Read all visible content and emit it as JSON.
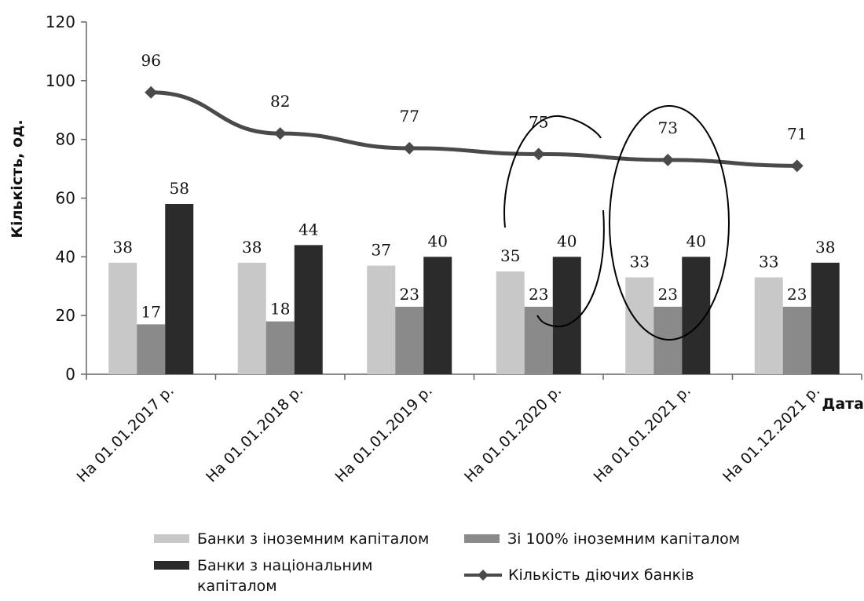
{
  "chart_data": {
    "type": "bar",
    "xlabel": "Дата",
    "ylabel": "Кількість, од.",
    "ylim": [
      0,
      120
    ],
    "yticks": [
      0,
      20,
      40,
      60,
      80,
      100,
      120
    ],
    "grid": false,
    "legend_position": "bottom",
    "categories": [
      "На 01.01.2017 р.",
      "На 01.01.2018 р.",
      "На 01.01.2019 р.",
      "На 01.01.2020 р.",
      "На 01.01.2021 р.",
      "На 01.12.2021 р."
    ],
    "series": [
      {
        "name": "Банки з іноземним капіталом",
        "kind": "bar",
        "color": "#c8c8c8",
        "values": [
          38,
          38,
          37,
          35,
          33,
          33
        ]
      },
      {
        "name": "Зі 100% іноземним капіталом",
        "kind": "bar",
        "color": "#8a8a8a",
        "values": [
          17,
          18,
          23,
          23,
          23,
          23
        ]
      },
      {
        "name": "Банки з національним капіталом",
        "kind": "bar",
        "color": "#2b2b2b",
        "values": [
          58,
          44,
          40,
          40,
          40,
          38
        ]
      },
      {
        "name": "Кількість діючих банків",
        "kind": "line",
        "color": "#4a4a4a",
        "marker": "diamond",
        "values": [
          96,
          82,
          77,
          75,
          73,
          71
        ]
      }
    ]
  },
  "legend": {
    "item1": "Банки з іноземним капіталом",
    "item2": "Зі 100% іноземним капіталом",
    "item3_line1": "Банки з національним",
    "item3_line2": "капіталом",
    "item4": "Кількість діючих банків"
  },
  "colors": {
    "bar_light": "#c8c8c8",
    "bar_mid": "#8a8a8a",
    "bar_dark": "#2b2b2b",
    "line": "#4a4a4a"
  }
}
